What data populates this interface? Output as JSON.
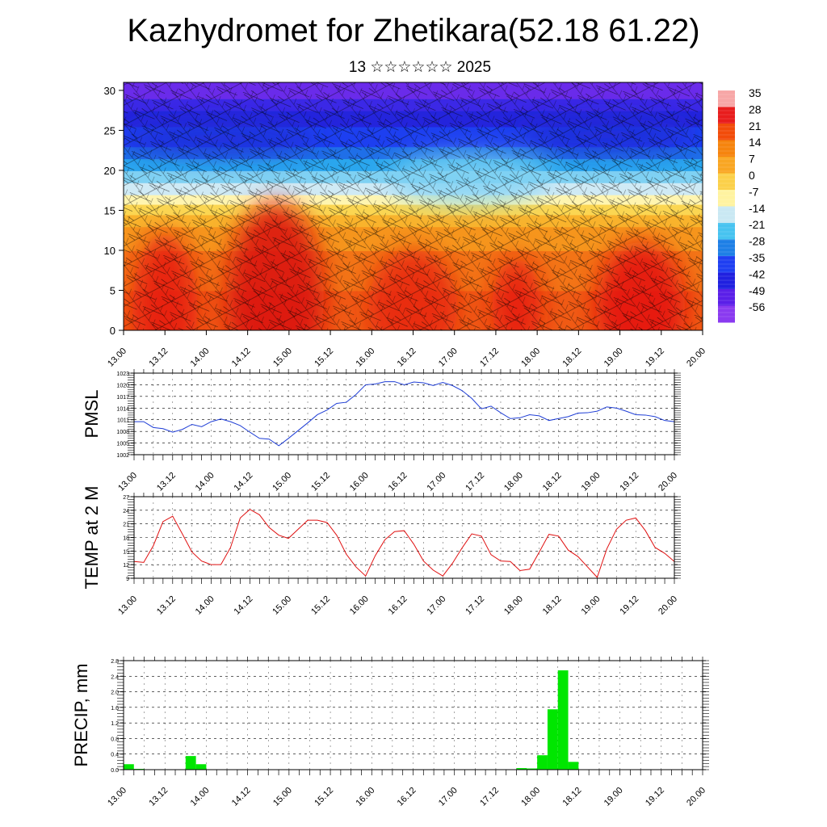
{
  "header": {
    "title": "Kazhydromet for Zhetikara(52.18 61.22)",
    "subtitle": "13 ☆☆☆☆☆☆ 2025"
  },
  "time_labels": [
    "13.00",
    "13.12",
    "14.00",
    "14.12",
    "15.00",
    "15.12",
    "16.00",
    "16.12",
    "17.00",
    "17.12",
    "18.00",
    "18.12",
    "19.00",
    "19.12",
    "20.00"
  ],
  "chart_data": [
    {
      "type": "heatmap",
      "title": "",
      "xlabel": "",
      "ylabel": "",
      "ylim": [
        0,
        31
      ],
      "yticks": [
        0,
        5,
        10,
        15,
        20,
        25,
        30
      ],
      "x": [
        "13.00",
        "13.12",
        "14.00",
        "14.12",
        "15.00",
        "15.12",
        "16.00",
        "16.12",
        "17.00",
        "17.12",
        "18.00",
        "18.12",
        "19.00",
        "19.12",
        "20.00"
      ],
      "colorbar": {
        "labels": [
          "35",
          "28",
          "21",
          "14",
          "7",
          "0",
          "-7",
          "-14",
          "-21",
          "-28",
          "-35",
          "-42",
          "-49",
          "-56"
        ],
        "colors": [
          "#f7a6a6",
          "#e81d1d",
          "#f24c0a",
          "#f6840e",
          "#f9a623",
          "#fbd04a",
          "#fff3a0",
          "#c9e8f3",
          "#47c3f0",
          "#1e7fe6",
          "#1f3ff2",
          "#2020e0",
          "#5a1fe8",
          "#8a3af0"
        ]
      },
      "overlay": "wind barbs"
    },
    {
      "type": "line",
      "ylabel": "PMSL",
      "ylim": [
        1002,
        1023
      ],
      "yticks": [
        "1002",
        "1005",
        "1008",
        "1011",
        "1014",
        "1017",
        "1020",
        "1023"
      ],
      "x": [
        0,
        3,
        6,
        9,
        12,
        15,
        18,
        21,
        24,
        27,
        30,
        33,
        36,
        39,
        42,
        45,
        48,
        51,
        54,
        57,
        60,
        63,
        66,
        69,
        72,
        75,
        78,
        81,
        84,
        87,
        90,
        93,
        96,
        99,
        102,
        105,
        108,
        111,
        114,
        117,
        120,
        123,
        126,
        129,
        132,
        135,
        138,
        141,
        144,
        147,
        150,
        153,
        156,
        159,
        162,
        165,
        168
      ],
      "series": [
        {
          "color": "#1f3ed6",
          "values": [
            1010.5,
            1010.5,
            1009,
            1008.7,
            1007.8,
            1008.5,
            1009.8,
            1009.2,
            1010.5,
            1011.2,
            1010.5,
            1009.5,
            1007.8,
            1006.2,
            1006,
            1004.3,
            1006.2,
            1008.2,
            1010.2,
            1012.3,
            1013.5,
            1015.2,
            1015.5,
            1017.5,
            1020,
            1020.2,
            1020.8,
            1020.8,
            1020,
            1020.7,
            1020.5,
            1019.8,
            1020.6,
            1019.8,
            1018.5,
            1016.5,
            1013.8,
            1014.5,
            1012.8,
            1011.3,
            1011.5,
            1012.3,
            1012,
            1010.8,
            1011.3,
            1011.8,
            1012.7,
            1012.8,
            1013.2,
            1014.3,
            1014,
            1013.2,
            1012.3,
            1012.2,
            1011.8,
            1010.8,
            1010.5
          ]
        }
      ]
    },
    {
      "type": "line",
      "ylabel": "TEMP at 2 M",
      "ylim": [
        9,
        27
      ],
      "yticks": [
        "9",
        "12",
        "15",
        "18",
        "21",
        "24",
        "27"
      ],
      "x": [
        0,
        3,
        6,
        9,
        12,
        15,
        18,
        21,
        24,
        27,
        30,
        33,
        36,
        39,
        42,
        45,
        48,
        51,
        54,
        57,
        60,
        63,
        66,
        69,
        72,
        75,
        78,
        81,
        84,
        87,
        90,
        93,
        96,
        99,
        102,
        105,
        108,
        111,
        114,
        117,
        120,
        123,
        126,
        129,
        132,
        135,
        138,
        141,
        144,
        147,
        150,
        153,
        156,
        159,
        162,
        165,
        168
      ],
      "series": [
        {
          "color": "#e01010",
          "values": [
            12.7,
            12.5,
            16.2,
            21.5,
            22.7,
            18.8,
            14.8,
            12.8,
            12,
            12,
            15.8,
            22.3,
            24.2,
            23,
            20.2,
            18.5,
            17.8,
            19.8,
            21.8,
            21.8,
            21.3,
            18.5,
            14.3,
            11.5,
            9.5,
            14,
            17.5,
            19.3,
            19.5,
            16.5,
            12.8,
            10.8,
            9.5,
            12.3,
            15.7,
            18.8,
            18.3,
            14.2,
            12.8,
            12.7,
            10.7,
            11,
            14.8,
            18.7,
            18.3,
            15.2,
            13.8,
            11.5,
            9.2,
            15.5,
            19.8,
            21.8,
            22.3,
            19.5,
            15.8,
            14.5,
            12.7
          ]
        }
      ]
    },
    {
      "type": "bar",
      "ylabel": "PRECIP, mm",
      "ylim": [
        0,
        2.8
      ],
      "yticks": [
        "0.0",
        "0.4",
        "0.8",
        "1.2",
        "1.6",
        "2.0",
        "2.4",
        "2.8"
      ],
      "bar_color": "#00e600",
      "x": [
        0,
        3,
        6,
        9,
        12,
        15,
        18,
        21,
        24,
        27,
        30,
        33,
        36,
        39,
        42,
        45,
        48,
        51,
        54,
        57,
        60,
        63,
        66,
        69,
        72,
        75,
        78,
        81,
        84,
        87,
        90,
        93,
        96,
        99,
        102,
        105,
        108,
        111,
        114,
        117,
        120,
        123,
        126,
        129,
        132,
        135,
        138,
        141,
        144,
        147,
        150,
        153,
        156,
        159,
        162,
        165
      ],
      "values": [
        0.14,
        0.02,
        0,
        0,
        0,
        0,
        0.35,
        0.14,
        0,
        0,
        0,
        0,
        0,
        0,
        0,
        0,
        0,
        0,
        0,
        0,
        0,
        0,
        0,
        0,
        0,
        0,
        0,
        0,
        0,
        0,
        0,
        0,
        0,
        0,
        0,
        0,
        0,
        0,
        0.04,
        0.03,
        0.37,
        1.55,
        2.55,
        0.2,
        0,
        0,
        0,
        0,
        0,
        0,
        0,
        0,
        0,
        0,
        0,
        0
      ]
    }
  ]
}
